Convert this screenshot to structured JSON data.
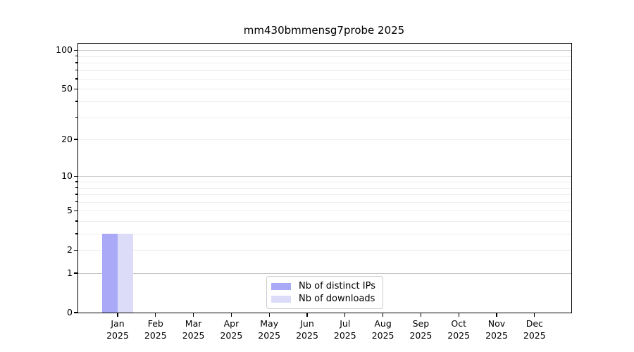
{
  "title": "mm430bmmensg7probe 2025",
  "chart_data": {
    "type": "bar",
    "title": "mm430bmmensg7probe 2025",
    "categories": [
      "Jan",
      "Feb",
      "Mar",
      "Apr",
      "May",
      "Jun",
      "Jul",
      "Aug",
      "Sep",
      "Oct",
      "Nov",
      "Dec"
    ],
    "x_sublabel": "2025",
    "series": [
      {
        "name": "Nb of distinct IPs",
        "color": "#a9a9f7",
        "values": [
          3,
          0,
          0,
          0,
          0,
          0,
          0,
          0,
          0,
          0,
          0,
          0
        ]
      },
      {
        "name": "Nb of downloads",
        "color": "#dcdcf9",
        "values": [
          3,
          0,
          0,
          0,
          0,
          0,
          0,
          0,
          0,
          0,
          0,
          0
        ]
      }
    ],
    "yscale": "log10(value+1)",
    "ylim": [
      0,
      112
    ],
    "yticks": [
      0,
      1,
      2,
      5,
      10,
      20,
      50,
      100
    ],
    "minor_grid_values": [
      3,
      4,
      6,
      7,
      8,
      9,
      30,
      40,
      60,
      70,
      80,
      90
    ],
    "major_grid_values": [
      1,
      10,
      100
    ],
    "grid": true,
    "legend_position": "lower center",
    "colors": {
      "minor_grid": "#ededed",
      "major_grid": "#c7c7c7",
      "axis": "#000000",
      "legend_border": "#cccccc"
    }
  }
}
